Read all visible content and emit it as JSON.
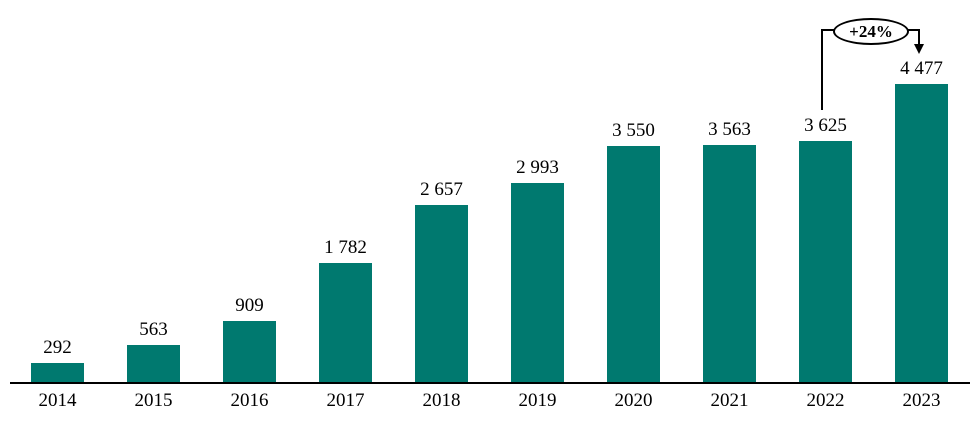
{
  "chart_data": {
    "type": "bar",
    "categories": [
      "2014",
      "2015",
      "2016",
      "2017",
      "2018",
      "2019",
      "2020",
      "2021",
      "2022",
      "2023"
    ],
    "values": [
      292,
      563,
      909,
      1782,
      2657,
      2993,
      3550,
      3563,
      3625,
      4477
    ],
    "value_labels": [
      "292",
      "563",
      "909",
      "1 782",
      "2 657",
      "2 993",
      "3 550",
      "3 563",
      "3 625",
      "4 477"
    ],
    "title": "",
    "xlabel": "",
    "ylabel": "",
    "ylim": [
      0,
      4700
    ],
    "grid": false,
    "legend": false,
    "bar_color": "#00796F",
    "axis_color": "#000000",
    "annotation": {
      "label": "+24%",
      "from_category": "2022",
      "to_category": "2023"
    }
  }
}
